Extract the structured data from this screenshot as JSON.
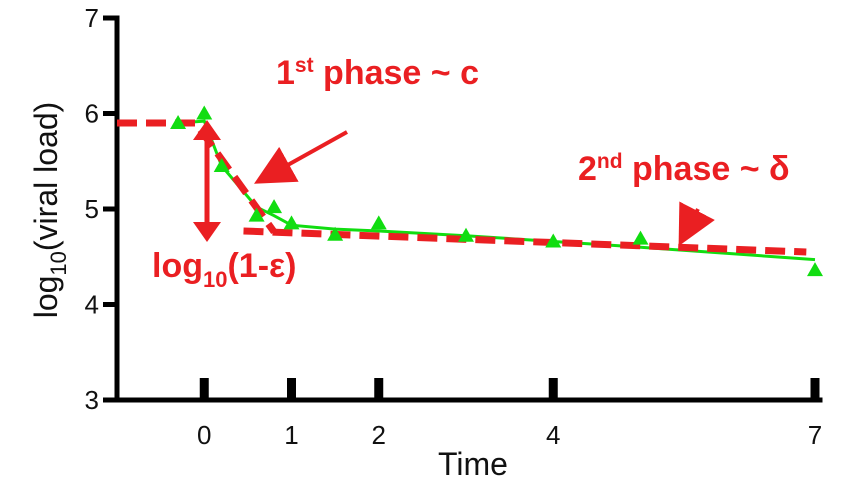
{
  "chart_data": {
    "type": "line",
    "xlabel": "Time",
    "ylabel_main": "log",
    "ylabel_sub": "10",
    "ylabel_rest": "(viral load)",
    "x_ticks": [
      0,
      1,
      2,
      4,
      7
    ],
    "x_tick_labels": [
      "0",
      "1",
      "2",
      "4",
      "7"
    ],
    "y_ticks": [
      3,
      4,
      5,
      6,
      7
    ],
    "y_tick_labels": [
      "3",
      "4",
      "5",
      "6",
      "7"
    ],
    "xlim": [
      -1.0,
      7.0
    ],
    "ylim": [
      3,
      7
    ],
    "grid": false,
    "colors": {
      "data": "#11dd11",
      "model": "#ea1f22"
    },
    "series": [
      {
        "kind": "data",
        "x": [
          -0.3,
          0.0,
          0.2,
          0.6,
          0.8,
          1.0,
          1.5,
          2.0,
          3.0,
          4.0,
          5.0,
          7.0
        ],
        "y": [
          5.9,
          6.0,
          5.45,
          4.93,
          5.02,
          4.85,
          4.73,
          4.85,
          4.72,
          4.66,
          4.69,
          4.36
        ]
      },
      {
        "kind": "fit",
        "x": [
          -0.3,
          0.0,
          0.2,
          0.6,
          0.8,
          1.0,
          1.5,
          2.0,
          3.0,
          4.0,
          5.0,
          7.0
        ],
        "y": [
          5.9,
          5.92,
          5.45,
          5.02,
          4.93,
          4.83,
          4.79,
          4.77,
          4.72,
          4.66,
          4.6,
          4.47
        ]
      },
      {
        "kind": "model-phase1",
        "x": [
          -1.0,
          -0.1,
          0.8
        ],
        "y": [
          5.9,
          5.9,
          4.76
        ]
      },
      {
        "kind": "model-phase2",
        "x": [
          0.45,
          6.9
        ],
        "y": [
          4.77,
          4.55
        ]
      }
    ],
    "annotations": {
      "phase1": {
        "main": "1",
        "sup": "st",
        "rest": " phase ~ c"
      },
      "phase2": {
        "main": "2",
        "sup": "nd",
        "rest": " phase ~ δ"
      },
      "efficacy": {
        "main": "log",
        "sub": "10",
        "rest": "(1-ε)"
      }
    }
  }
}
